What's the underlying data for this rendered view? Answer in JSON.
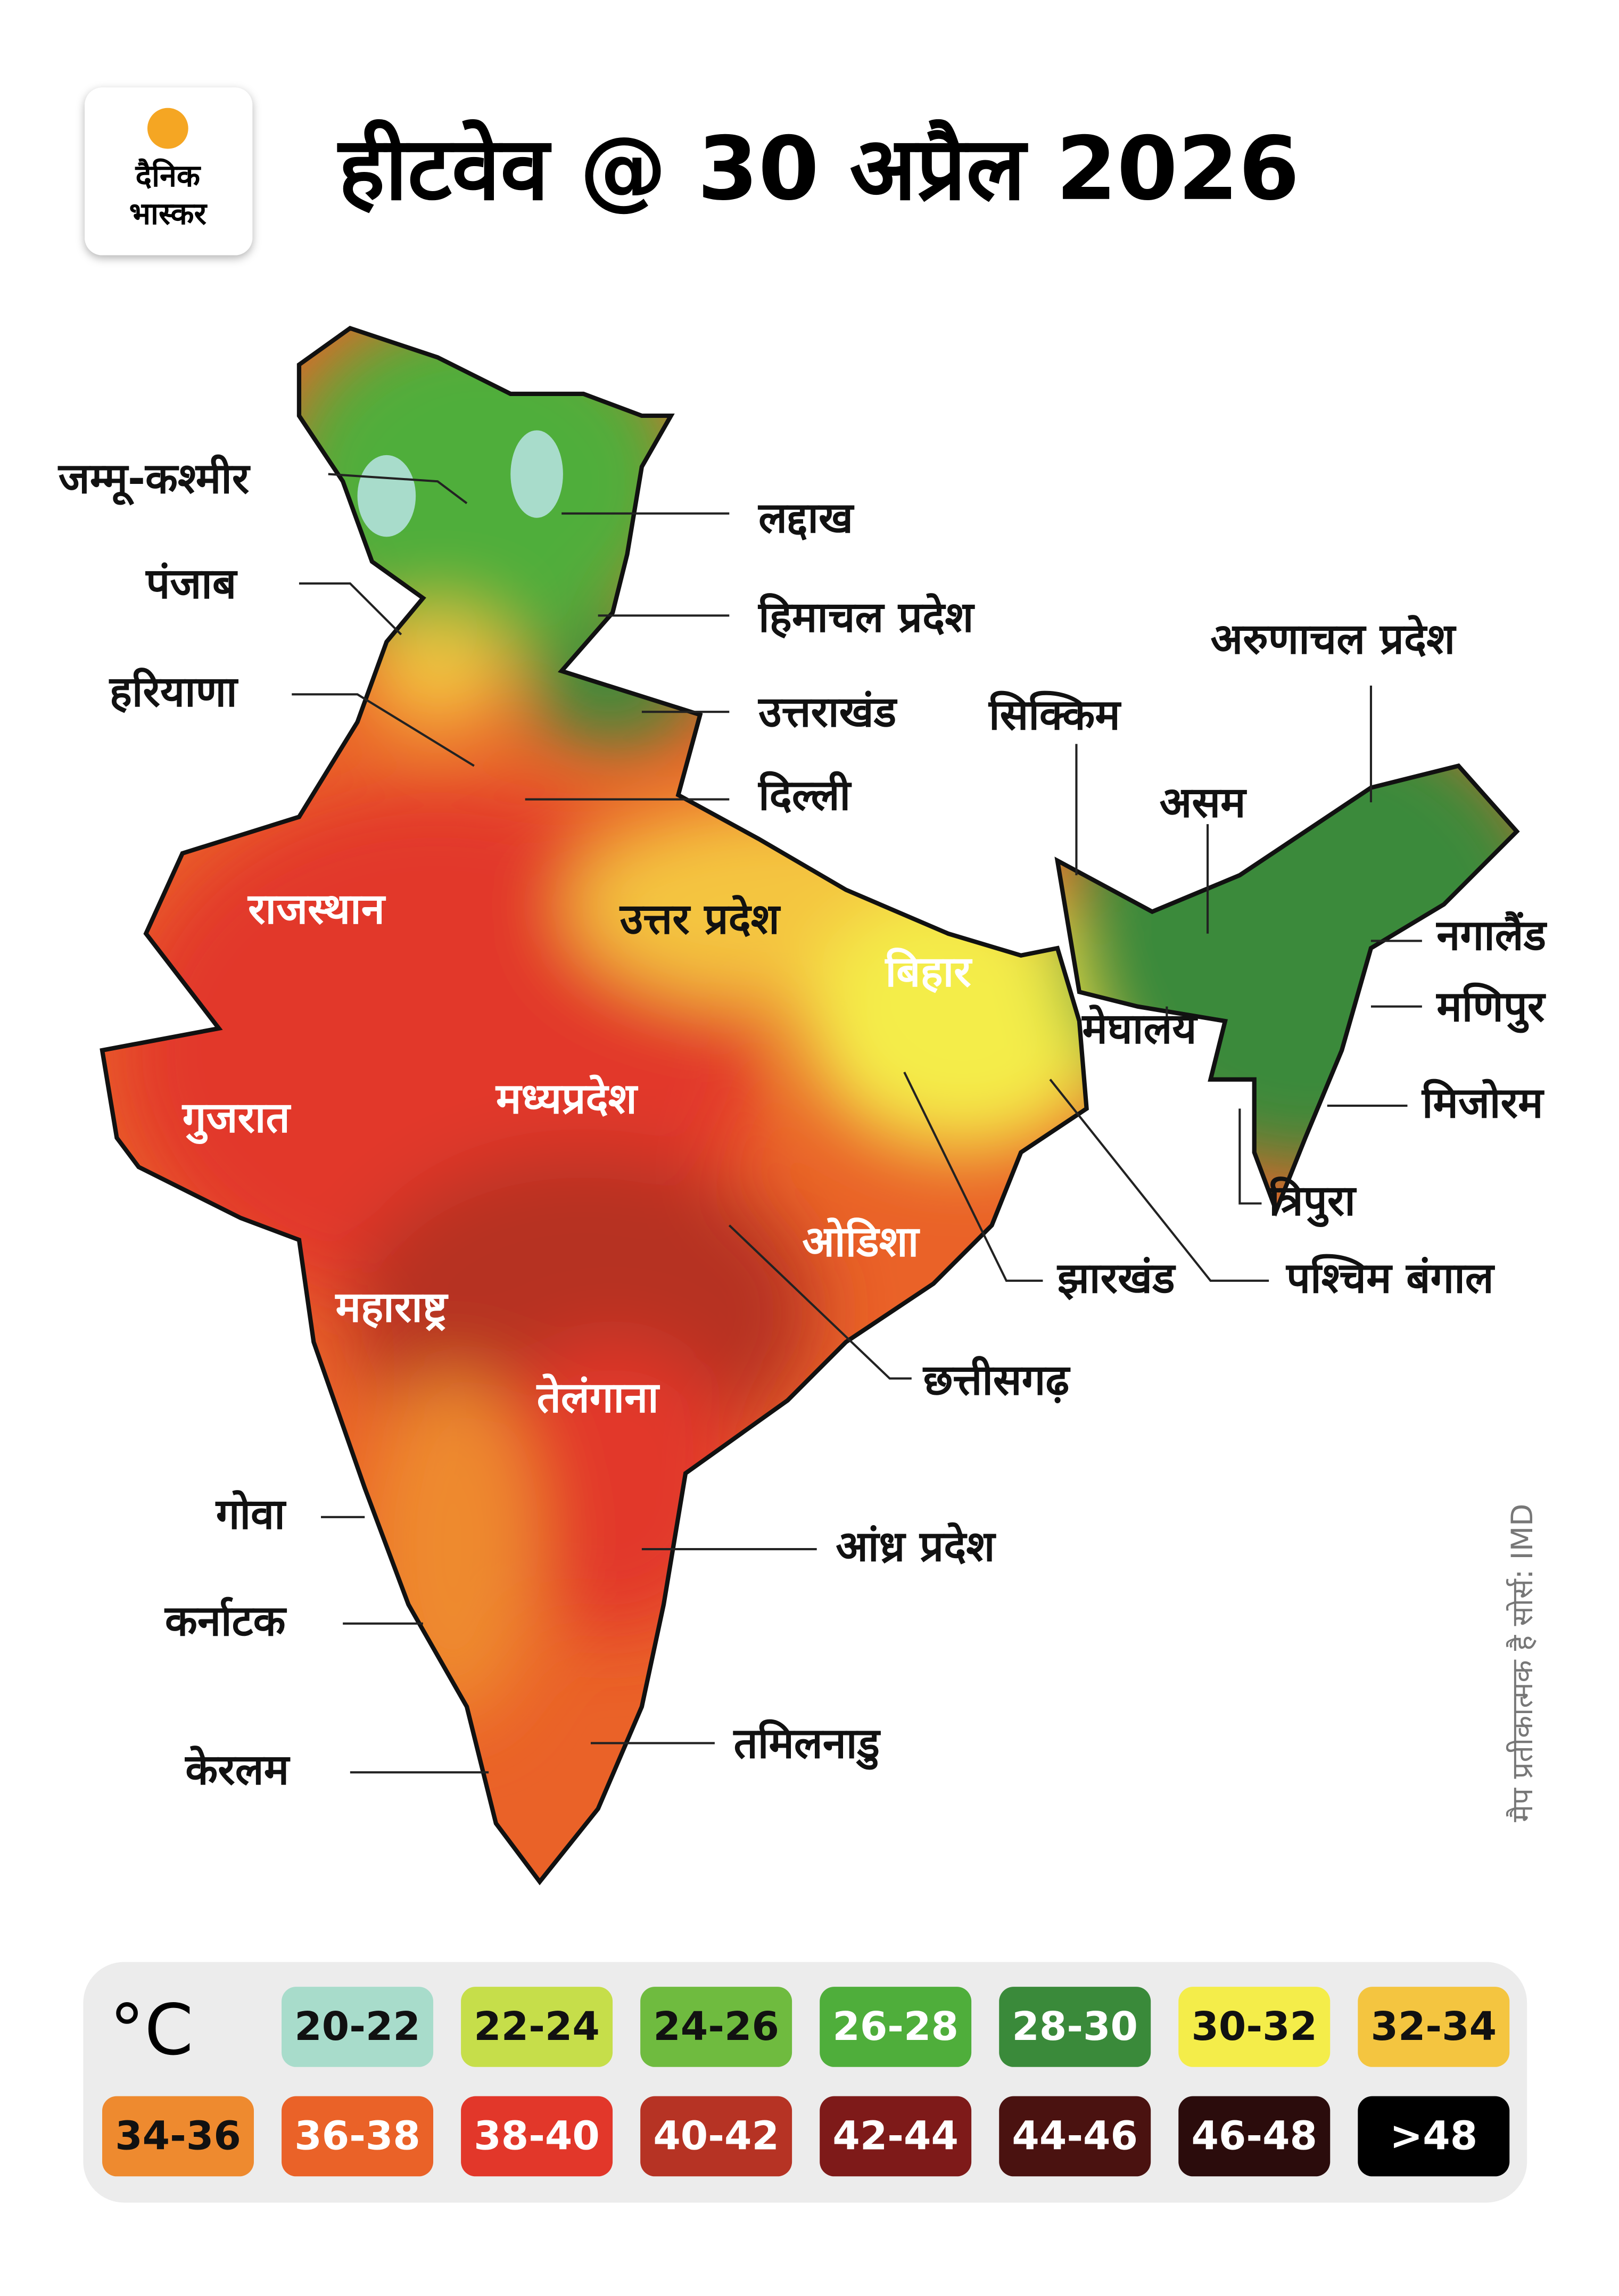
{
  "header": {
    "logo": [
      "दैनिक",
      "भास्कर"
    ],
    "title": "हीटवेव @ 30 अप्रैल 2026"
  },
  "map": {
    "labels": [
      "जम्मू-कश्मीर",
      "लद्दाख",
      "पंजाब",
      "हिमाचल प्रदेश",
      "हरियाणा",
      "उत्तराखंड",
      "दिल्ली",
      "अरुणाचल प्रदेश",
      "सिक्किम",
      "असम",
      "राजस्थान",
      "उत्तर प्रदेश",
      "बिहार",
      "नगालैंड",
      "मेघालय",
      "मणिपुर",
      "गुजरात",
      "मध्यप्रदेश",
      "मिजोरम",
      "त्रिपुरा",
      "ओडिशा",
      "झारखंड",
      "पश्चिम बंगाल",
      "महाराष्ट्र",
      "छत्तीसगढ़",
      "तेलंगाना",
      "गोवा",
      "आंध्र प्रदेश",
      "कर्नाटक",
      "तमिलनाडु",
      "केरलम"
    ]
  },
  "legend": {
    "unit": "°C",
    "items": [
      {
        "label": "20-22",
        "color": "#a8dccb"
      },
      {
        "label": "22-24",
        "color": "#c6de4a"
      },
      {
        "label": "24-26",
        "color": "#6fbb3f"
      },
      {
        "label": "26-28",
        "color": "#4fae3b"
      },
      {
        "label": "28-30",
        "color": "#3a8a3a"
      },
      {
        "label": "30-32",
        "color": "#f4ed4a"
      },
      {
        "label": "32-34",
        "color": "#f4c540"
      },
      {
        "label": "34-36",
        "color": "#ee8a2f"
      },
      {
        "label": "36-38",
        "color": "#ea6228"
      },
      {
        "label": "38-40",
        "color": "#e2372a"
      },
      {
        "label": "40-42",
        "color": "#b63324"
      },
      {
        "label": "42-44",
        "color": "#7e1a19"
      },
      {
        "label": "44-46",
        "color": "#4a1210"
      },
      {
        "label": "46-48",
        "color": "#2b0c0c"
      },
      {
        "label": ">48",
        "color": "#000000"
      }
    ]
  },
  "note": "मैप प्रतीकात्मक है सोर्स: IMD"
}
